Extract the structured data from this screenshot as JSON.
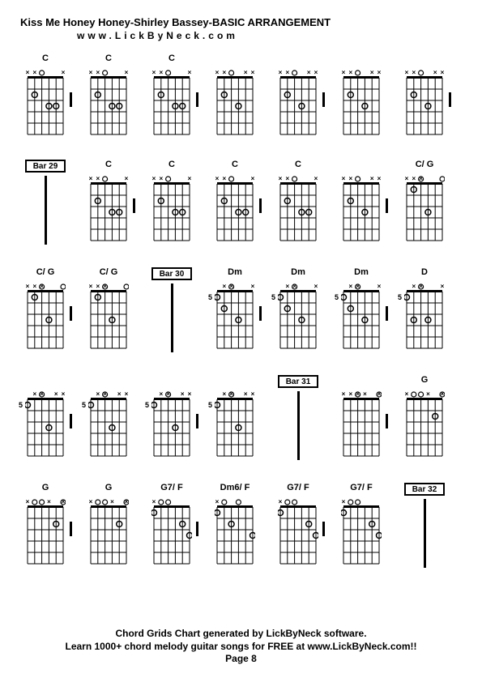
{
  "title": "Kiss Me Honey Honey-Shirley Bassey-BASIC ARRANGEMENT",
  "subtitle": "www.LickByNeck.com",
  "footer_line1": "Chord Grids Chart generated by LickByNeck software.",
  "footer_line2": "Learn 1000+ chord melody guitar songs for FREE at www.LickByNeck.com!!",
  "footer_page": "Page 8",
  "colors": {
    "line": "#000000",
    "bg": "#ffffff"
  },
  "rows": [
    [
      {
        "type": "chord",
        "label": "C",
        "fret": "",
        "muted": [
          1,
          1,
          0,
          0,
          0,
          1
        ],
        "dots": [
          [
            2,
            2
          ],
          [
            3,
            4
          ],
          [
            3,
            5
          ]
        ],
        "open": [
          3
        ],
        "beat": true
      },
      {
        "type": "chord",
        "label": "C",
        "fret": "",
        "muted": [
          1,
          1,
          0,
          0,
          0,
          1
        ],
        "dots": [
          [
            2,
            2
          ],
          [
            3,
            4
          ],
          [
            3,
            5
          ]
        ],
        "open": [
          3
        ],
        "beat": false
      },
      {
        "type": "chord",
        "label": "C",
        "fret": "",
        "muted": [
          1,
          1,
          0,
          0,
          0,
          1
        ],
        "dots": [
          [
            2,
            2
          ],
          [
            3,
            4
          ],
          [
            3,
            5
          ]
        ],
        "open": [
          3
        ],
        "beat": true
      },
      {
        "type": "chord",
        "label": "",
        "fret": "",
        "muted": [
          1,
          1,
          0,
          0,
          1,
          1
        ],
        "dots": [
          [
            2,
            2
          ],
          [
            3,
            4
          ]
        ],
        "open": [
          3
        ],
        "beat": false
      },
      {
        "type": "chord",
        "label": "",
        "fret": "",
        "muted": [
          1,
          1,
          0,
          0,
          1,
          1
        ],
        "dots": [
          [
            2,
            2
          ],
          [
            3,
            4
          ]
        ],
        "open": [
          3
        ],
        "beat": true
      },
      {
        "type": "chord",
        "label": "",
        "fret": "",
        "muted": [
          1,
          1,
          0,
          0,
          1,
          1
        ],
        "dots": [
          [
            2,
            2
          ],
          [
            3,
            4
          ]
        ],
        "open": [
          3
        ],
        "beat": false
      },
      {
        "type": "chord",
        "label": "",
        "fret": "",
        "muted": [
          1,
          1,
          0,
          0,
          1,
          1
        ],
        "dots": [
          [
            2,
            2
          ],
          [
            3,
            4
          ]
        ],
        "open": [
          3
        ],
        "beat": true
      }
    ],
    [
      {
        "type": "bar",
        "label": "Bar 29"
      },
      {
        "type": "chord",
        "label": "C",
        "fret": "",
        "muted": [
          1,
          1,
          0,
          0,
          0,
          1
        ],
        "dots": [
          [
            2,
            2
          ],
          [
            3,
            4
          ],
          [
            3,
            5
          ]
        ],
        "open": [
          3
        ],
        "beat": true
      },
      {
        "type": "chord",
        "label": "C",
        "fret": "",
        "muted": [
          1,
          1,
          0,
          0,
          0,
          1
        ],
        "dots": [
          [
            2,
            2
          ],
          [
            3,
            4
          ],
          [
            3,
            5
          ]
        ],
        "open": [
          3
        ],
        "beat": false
      },
      {
        "type": "chord",
        "label": "C",
        "fret": "",
        "muted": [
          1,
          1,
          0,
          0,
          0,
          1
        ],
        "dots": [
          [
            2,
            2
          ],
          [
            3,
            4
          ],
          [
            3,
            5
          ]
        ],
        "open": [
          3
        ],
        "beat": true
      },
      {
        "type": "chord",
        "label": "C",
        "fret": "",
        "muted": [
          1,
          1,
          0,
          0,
          0,
          1
        ],
        "dots": [
          [
            2,
            2
          ],
          [
            3,
            4
          ],
          [
            3,
            5
          ]
        ],
        "open": [
          3
        ],
        "beat": false
      },
      {
        "type": "chord",
        "label": "",
        "fret": "",
        "muted": [
          1,
          1,
          0,
          0,
          1,
          1
        ],
        "dots": [
          [
            2,
            2
          ],
          [
            3,
            4
          ]
        ],
        "open": [
          3
        ],
        "beat": true
      },
      {
        "type": "chord",
        "label": "C/ G",
        "fret": "",
        "muted": [
          1,
          1,
          1,
          0,
          0,
          0
        ],
        "dots": [
          [
            1,
            2
          ],
          [
            3,
            4
          ]
        ],
        "open": [
          3,
          6
        ],
        "beat": false
      }
    ],
    [
      {
        "type": "chord",
        "label": "C/ G",
        "fret": "",
        "muted": [
          1,
          1,
          1,
          0,
          0,
          0
        ],
        "dots": [
          [
            1,
            2
          ],
          [
            3,
            4
          ]
        ],
        "open": [
          3,
          6
        ],
        "beat": true
      },
      {
        "type": "chord",
        "label": "C/ G",
        "fret": "",
        "muted": [
          1,
          1,
          1,
          0,
          0,
          0
        ],
        "dots": [
          [
            1,
            2
          ],
          [
            3,
            4
          ]
        ],
        "open": [
          3,
          6
        ],
        "beat": false
      },
      {
        "type": "bar",
        "label": "Bar 30"
      },
      {
        "type": "chord",
        "label": "Dm",
        "fret": "5",
        "muted": [
          0,
          1,
          1,
          0,
          0,
          1
        ],
        "dots": [
          [
            1,
            1
          ],
          [
            2,
            2
          ],
          [
            3,
            4
          ]
        ],
        "open": [
          3
        ],
        "beat": true
      },
      {
        "type": "chord",
        "label": "Dm",
        "fret": "5",
        "muted": [
          0,
          1,
          1,
          0,
          0,
          1
        ],
        "dots": [
          [
            1,
            1
          ],
          [
            2,
            2
          ],
          [
            3,
            4
          ]
        ],
        "open": [
          3
        ],
        "beat": false
      },
      {
        "type": "chord",
        "label": "Dm",
        "fret": "5",
        "muted": [
          0,
          1,
          1,
          0,
          0,
          1
        ],
        "dots": [
          [
            1,
            1
          ],
          [
            2,
            2
          ],
          [
            3,
            4
          ]
        ],
        "open": [
          3
        ],
        "beat": true
      },
      {
        "type": "chord",
        "label": "D",
        "fret": "5",
        "muted": [
          0,
          1,
          1,
          0,
          0,
          1
        ],
        "dots": [
          [
            1,
            1
          ],
          [
            3,
            2
          ],
          [
            3,
            4
          ]
        ],
        "open": [
          3
        ],
        "beat": false
      }
    ],
    [
      {
        "type": "chord",
        "label": "",
        "fret": "5",
        "muted": [
          0,
          1,
          1,
          0,
          1,
          1
        ],
        "dots": [
          [
            1,
            1
          ],
          [
            3,
            4
          ]
        ],
        "open": [
          3
        ],
        "beat": true
      },
      {
        "type": "chord",
        "label": "",
        "fret": "5",
        "muted": [
          0,
          1,
          1,
          0,
          1,
          1
        ],
        "dots": [
          [
            1,
            1
          ],
          [
            3,
            4
          ]
        ],
        "open": [
          3
        ],
        "beat": false
      },
      {
        "type": "chord",
        "label": "",
        "fret": "5",
        "muted": [
          0,
          1,
          1,
          0,
          1,
          1
        ],
        "dots": [
          [
            1,
            1
          ],
          [
            3,
            4
          ]
        ],
        "open": [
          3
        ],
        "beat": true
      },
      {
        "type": "chord",
        "label": "",
        "fret": "5",
        "muted": [
          0,
          1,
          1,
          0,
          1,
          1
        ],
        "dots": [
          [
            1,
            1
          ],
          [
            3,
            4
          ]
        ],
        "open": [
          3
        ],
        "beat": false
      },
      {
        "type": "bar",
        "label": "Bar 31"
      },
      {
        "type": "chord",
        "label": "",
        "fret": "",
        "muted": [
          1,
          1,
          1,
          1,
          0,
          1
        ],
        "dots": [],
        "open": [
          3,
          6
        ],
        "beat": true
      },
      {
        "type": "chord",
        "label": "G",
        "fret": "",
        "muted": [
          1,
          0,
          0,
          1,
          0,
          1
        ],
        "dots": [
          [
            2,
            5
          ]
        ],
        "open": [
          2,
          3,
          6
        ],
        "beat": false
      }
    ],
    [
      {
        "type": "chord",
        "label": "G",
        "fret": "",
        "muted": [
          1,
          0,
          0,
          1,
          0,
          1
        ],
        "dots": [
          [
            2,
            5
          ]
        ],
        "open": [
          2,
          3,
          6
        ],
        "beat": true
      },
      {
        "type": "chord",
        "label": "G",
        "fret": "",
        "muted": [
          1,
          0,
          0,
          1,
          0,
          1
        ],
        "dots": [
          [
            2,
            5
          ]
        ],
        "open": [
          2,
          3,
          6
        ],
        "beat": false
      },
      {
        "type": "chord",
        "label": "G7/ F",
        "fret": "",
        "muted": [
          1,
          0,
          0,
          0,
          0,
          0
        ],
        "dots": [
          [
            1,
            1
          ],
          [
            2,
            5
          ],
          [
            3,
            6
          ]
        ],
        "open": [
          2,
          3
        ],
        "beat": true
      },
      {
        "type": "chord",
        "label": "Dm6/ F",
        "fret": "",
        "muted": [
          1,
          0,
          0,
          0,
          0,
          0
        ],
        "dots": [
          [
            1,
            1
          ],
          [
            2,
            3
          ],
          [
            3,
            6
          ]
        ],
        "open": [
          2,
          4
        ],
        "beat": false
      },
      {
        "type": "chord",
        "label": "G7/ F",
        "fret": "",
        "muted": [
          1,
          0,
          0,
          0,
          0,
          0
        ],
        "dots": [
          [
            1,
            1
          ],
          [
            2,
            5
          ],
          [
            3,
            6
          ]
        ],
        "open": [
          2,
          3
        ],
        "beat": true
      },
      {
        "type": "chord",
        "label": "G7/ F",
        "fret": "",
        "muted": [
          1,
          0,
          0,
          0,
          0,
          0
        ],
        "dots": [
          [
            1,
            1
          ],
          [
            2,
            5
          ],
          [
            3,
            6
          ]
        ],
        "open": [
          2,
          3
        ],
        "beat": false
      },
      {
        "type": "bar",
        "label": "Bar 32"
      }
    ]
  ]
}
